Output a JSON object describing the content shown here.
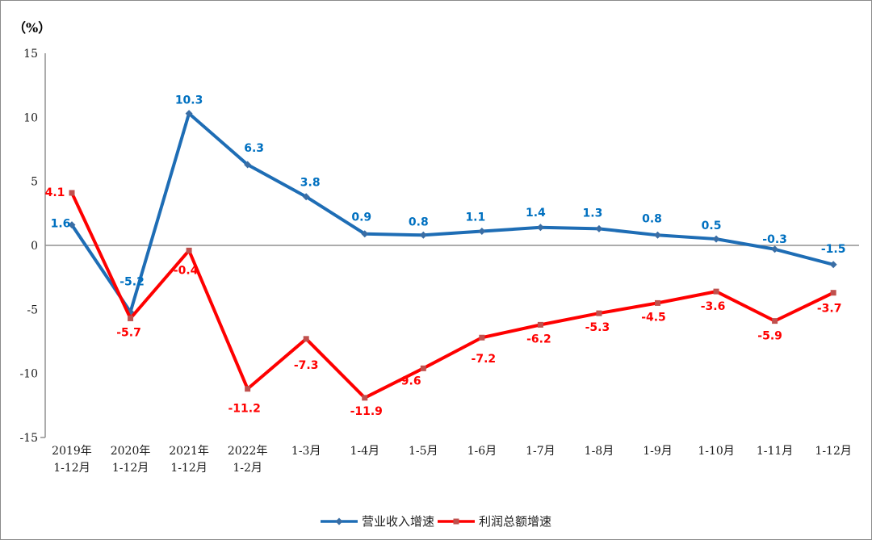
{
  "unit_label": "（%）",
  "chart_data": {
    "type": "line",
    "title": "",
    "xlabel": "",
    "ylabel": "（%）",
    "ylim": [
      -15,
      15
    ],
    "yticks": [
      15,
      10,
      5,
      0,
      -5,
      -10,
      -15
    ],
    "grid": "off (zero baseline only)",
    "legend_position": "bottom-center",
    "categories": [
      [
        "2019年",
        "1-12月"
      ],
      [
        "2020年",
        "1-12月"
      ],
      [
        "2021年",
        "1-12月"
      ],
      [
        "2022年",
        "1-2月"
      ],
      [
        "1-3月"
      ],
      [
        "1-4月"
      ],
      [
        "1-5月"
      ],
      [
        "1-6月"
      ],
      [
        "1-7月"
      ],
      [
        "1-8月"
      ],
      [
        "1-9月"
      ],
      [
        "1-10月"
      ],
      [
        "1-11月"
      ],
      [
        "1-12月"
      ]
    ],
    "series": [
      {
        "name": "营业收入增速",
        "line_color": "#1E6DB5",
        "label_color": "#0070C0",
        "marker": "diamond",
        "marker_color": "#3A6EA5",
        "values": [
          1.6,
          -5.2,
          10.3,
          6.3,
          3.8,
          0.9,
          0.8,
          1.1,
          1.4,
          1.3,
          0.8,
          0.5,
          -0.3,
          -1.5
        ],
        "label_dx": [
          -14,
          2,
          0,
          8,
          5,
          -4,
          -6,
          -8,
          -6,
          -8,
          -7,
          -6,
          0,
          0
        ],
        "label_dy": [
          -2,
          -38,
          -17,
          -21,
          -18,
          -21,
          -17,
          -18,
          -19,
          -20,
          -21,
          -17,
          -13,
          -20
        ]
      },
      {
        "name": "利润总额增速",
        "line_color": "#FE0000",
        "label_color": "#FF0000",
        "marker": "square",
        "marker_color": "#C0504D",
        "values": [
          4.1,
          -5.7,
          -0.4,
          -11.2,
          -7.3,
          -11.9,
          -9.6,
          -7.2,
          -6.2,
          -5.3,
          -4.5,
          -3.6,
          -5.9,
          -3.7
        ],
        "label_dx": [
          -21,
          -2,
          -4,
          -4,
          0,
          2,
          -18,
          2,
          -2,
          -2,
          -5,
          -4,
          -6,
          -5
        ],
        "label_dy": [
          -1,
          17,
          24,
          24,
          32,
          16,
          15,
          26,
          17,
          17,
          17,
          18,
          18,
          19
        ]
      }
    ],
    "axis_color": "#909090"
  }
}
